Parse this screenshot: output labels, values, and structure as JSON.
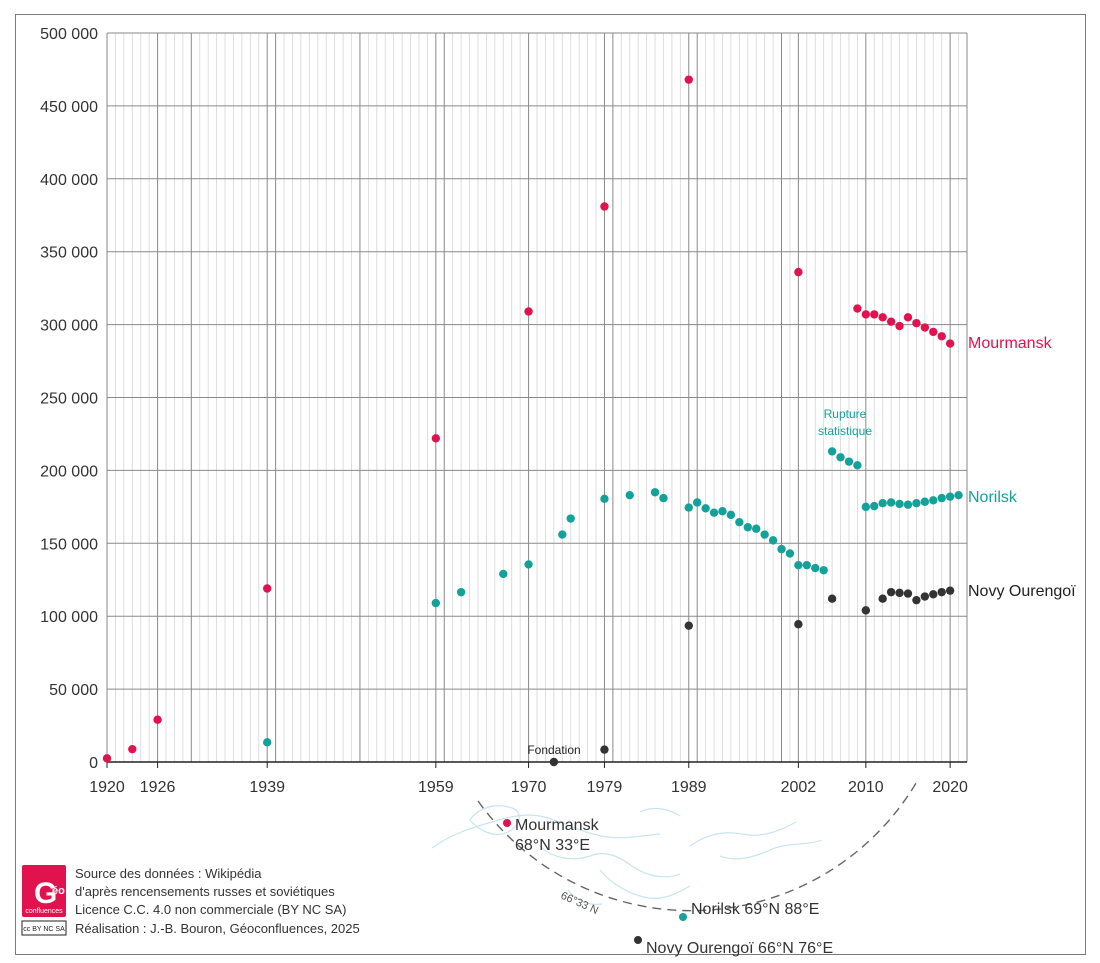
{
  "chart_data": {
    "type": "scatter",
    "title": "",
    "xlabel": "",
    "ylabel": "",
    "xlim": [
      1920,
      2022
    ],
    "ylim": [
      0,
      500000
    ],
    "x_tick_labels": [
      "1920",
      "1926",
      "1939",
      "1959",
      "1970",
      "1979",
      "1989",
      "2002",
      "2010",
      "2020"
    ],
    "y_tick_labels": [
      "0",
      "50 000",
      "100 000",
      "150 000",
      "200 000",
      "250 000",
      "300 000",
      "350 000",
      "400 000",
      "450 000",
      "500 000"
    ],
    "y_tick_values": [
      0,
      50000,
      100000,
      150000,
      200000,
      250000,
      300000,
      350000,
      400000,
      450000,
      500000
    ],
    "series": [
      {
        "name": "Mourmansk",
        "color": "#e0134f",
        "points": [
          [
            1920,
            2500
          ],
          [
            1923,
            8800
          ],
          [
            1926,
            29000
          ],
          [
            1939,
            119000
          ],
          [
            1959,
            222000
          ],
          [
            1970,
            309000
          ],
          [
            1979,
            381000
          ],
          [
            1989,
            468000
          ],
          [
            2002,
            336000
          ],
          [
            2009,
            311000
          ],
          [
            2010,
            307000
          ],
          [
            2011,
            307000
          ],
          [
            2012,
            305000
          ],
          [
            2013,
            302000
          ],
          [
            2014,
            299000
          ],
          [
            2015,
            305000
          ],
          [
            2016,
            301000
          ],
          [
            2017,
            298000
          ],
          [
            2018,
            295000
          ],
          [
            2019,
            292000
          ],
          [
            2020,
            287000
          ]
        ]
      },
      {
        "name": "Norilsk",
        "color": "#14a19a",
        "points": [
          [
            1939,
            13500
          ],
          [
            1959,
            109000
          ],
          [
            1962,
            116500
          ],
          [
            1967,
            129000
          ],
          [
            1970,
            135500
          ],
          [
            1974,
            156000
          ],
          [
            1975,
            167000
          ],
          [
            1979,
            180500
          ],
          [
            1982,
            183000
          ],
          [
            1985,
            185000
          ],
          [
            1986,
            181000
          ],
          [
            1989,
            174500
          ],
          [
            1990,
            178000
          ],
          [
            1991,
            174000
          ],
          [
            1992,
            171000
          ],
          [
            1993,
            172000
          ],
          [
            1994,
            169500
          ],
          [
            1995,
            164500
          ],
          [
            1996,
            161000
          ],
          [
            1997,
            160000
          ],
          [
            1998,
            156000
          ],
          [
            1999,
            152000
          ],
          [
            2000,
            146000
          ],
          [
            2001,
            143000
          ],
          [
            2002,
            135000
          ],
          [
            2003,
            135000
          ],
          [
            2004,
            133000
          ],
          [
            2005,
            131500
          ],
          [
            2006,
            213000
          ],
          [
            2007,
            209000
          ],
          [
            2008,
            206000
          ],
          [
            2009,
            203500
          ],
          [
            2010,
            175000
          ],
          [
            2011,
            175500
          ],
          [
            2012,
            177500
          ],
          [
            2013,
            178000
          ],
          [
            2014,
            177000
          ],
          [
            2015,
            176500
          ],
          [
            2016,
            177500
          ],
          [
            2017,
            178500
          ],
          [
            2018,
            179500
          ],
          [
            2019,
            181000
          ],
          [
            2020,
            182000
          ],
          [
            2021,
            183000
          ]
        ]
      },
      {
        "name": "Novy Ourengoï",
        "color": "#333333",
        "points": [
          [
            1973,
            0
          ],
          [
            1979,
            8500
          ],
          [
            1989,
            93500
          ],
          [
            2002,
            94500
          ],
          [
            2006,
            112000
          ],
          [
            2010,
            104000
          ],
          [
            2012,
            112000
          ],
          [
            2013,
            116500
          ],
          [
            2014,
            116000
          ],
          [
            2015,
            115500
          ],
          [
            2016,
            111000
          ],
          [
            2017,
            113500
          ],
          [
            2018,
            115000
          ],
          [
            2019,
            116500
          ],
          [
            2020,
            117500
          ]
        ]
      }
    ],
    "annotations": [
      {
        "text": "Fondation",
        "x": 1973,
        "y": 0
      },
      {
        "text_lines": [
          "Rupture",
          "statistique"
        ],
        "x": 2007.5,
        "y": 213000
      }
    ]
  },
  "colors": {
    "mourmansk": "#e0134f",
    "norilsk": "#14a19a",
    "novy": "#333333",
    "grid": "#aaaaaa",
    "map_line": "#c9e4ee"
  },
  "labels": {
    "mourmansk": "Mourmansk",
    "norilsk": "Norilsk",
    "novy": "Novy Ourengoï",
    "fondation": "Fondation",
    "rupture_1": "Rupture",
    "rupture_2": "statistique"
  },
  "map": {
    "circle_label": "66°33 N",
    "mourmansk_name": "Mourmansk",
    "mourmansk_coords": "68°N 33°E",
    "norilsk": "Norilsk 69°N 88°E",
    "novy": "Novy Ourengoï  66°N 76°E"
  },
  "credits": {
    "logo_letter": "G",
    "logo_sub": "éo",
    "logo_word": "confluences",
    "cc_badge": "cc BY NC SA",
    "line1": "Source des données : Wikipédia",
    "line2": "d'après rencensements russes et soviétiques",
    "line3": "Licence C.C. 4.0 non commerciale (BY NC SA)",
    "line4": "Réalisation : J.-B. Bouron, Géoconfluences, 2025"
  }
}
